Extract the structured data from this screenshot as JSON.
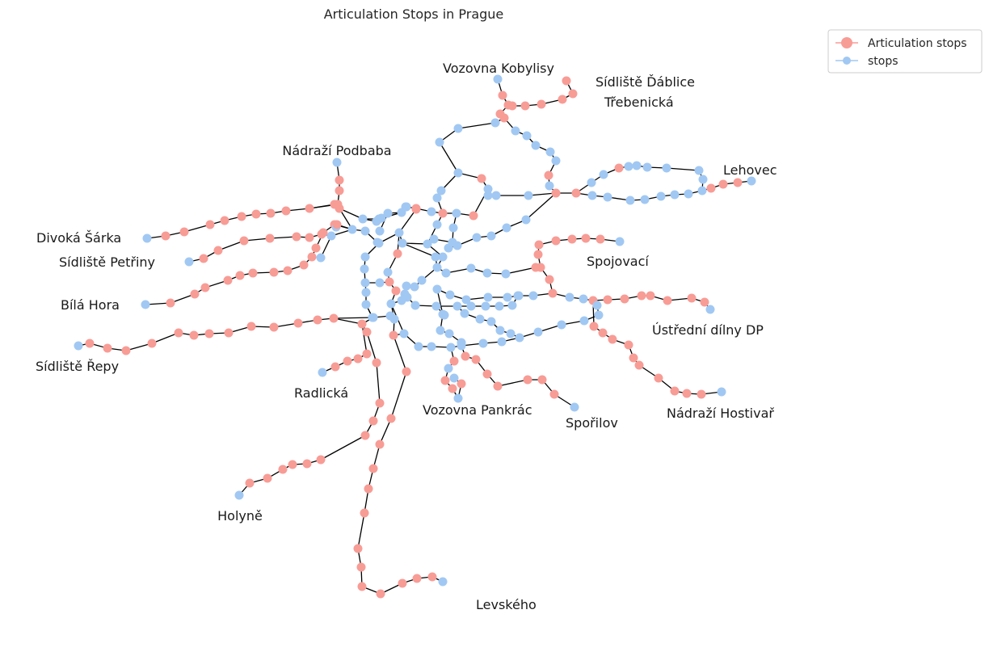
{
  "chart_data": {
    "type": "network",
    "title": "Articulation Stops in Prague",
    "legend": {
      "placement": "top-right",
      "entries": [
        {
          "label": "Articulation stops",
          "color": "#f89c96"
        },
        {
          "label": "stops",
          "color": "#a1c8f3"
        }
      ]
    },
    "colors": {
      "articulation": "#f89c96",
      "stop": "#a1c8f3",
      "edge": "#000000"
    },
    "labels": {
      "kobylisy": "Vozovna Kobylisy",
      "dablice": "Sídliště Ďáblice",
      "trebenicka": "Třebenická",
      "podbaba": "Nádraží Podbaba",
      "lehovec": "Lehovec",
      "divoka": "Divoká Šárka",
      "petriny": "Sídliště Petřiny",
      "spojovaci": "Spojovací",
      "bila": "Bílá Hora",
      "ustredni": "Ústřední dílny DP",
      "repy": "Sídliště Řepy",
      "radlicka": "Radlická",
      "pankrac": "Vozovna Pankrác",
      "sporilov": "Spořilov",
      "hostivar": "Nádraží Hostivař",
      "holyne": "Holyně",
      "levskeho": "Levského"
    }
  }
}
